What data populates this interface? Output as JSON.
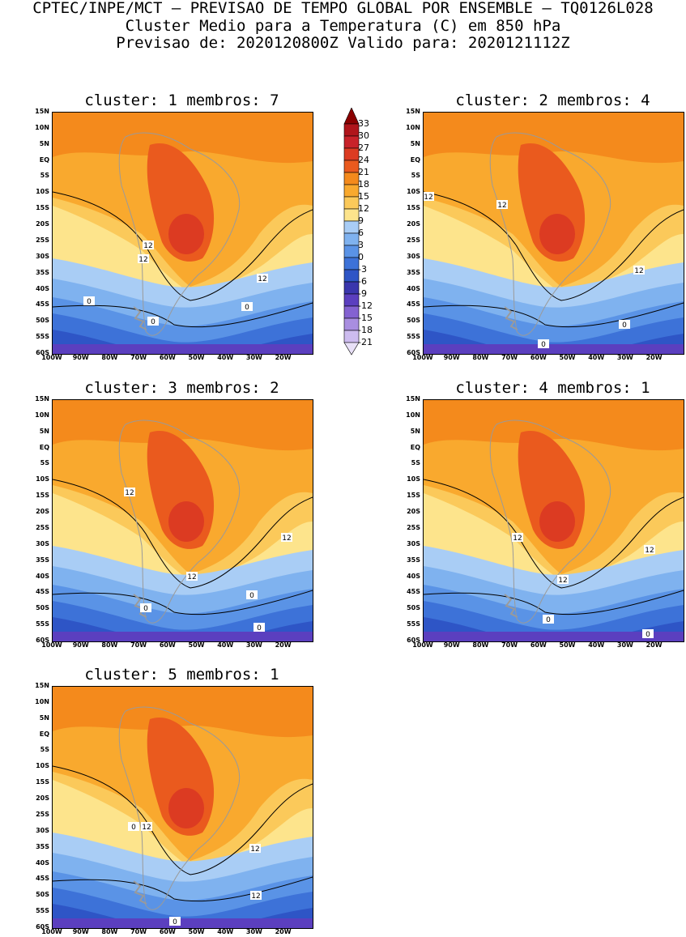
{
  "header": {
    "line1": "CPTEC/INPE/MCT – PREVISAO DE TEMPO GLOBAL POR ENSEMBLE – TQ0126L028",
    "line2": "Cluster Medio para a Temperatura (C) em 850 hPa",
    "line3": "Previsao de: 2020120800Z   Valido para: 2020121112Z"
  },
  "axes": {
    "lat_labels": [
      "15N",
      "10N",
      "5N",
      "EQ",
      "5S",
      "10S",
      "15S",
      "20S",
      "25S",
      "30S",
      "35S",
      "40S",
      "45S",
      "50S",
      "55S",
      "60S"
    ],
    "lon_labels": [
      "100W",
      "90W",
      "80W",
      "70W",
      "60W",
      "50W",
      "40W",
      "30W",
      "20W"
    ]
  },
  "colorbar": {
    "levels": [
      "33",
      "30",
      "27",
      "24",
      "21",
      "18",
      "15",
      "12",
      "9",
      "6",
      "3",
      "0",
      "-3",
      "-6",
      "-9",
      "-12",
      "-15",
      "-18",
      "-21"
    ],
    "colors": [
      "#8b0000",
      "#b0151b",
      "#c8222a",
      "#dc3b22",
      "#ea5a1e",
      "#f48a1c",
      "#f9a92e",
      "#fbc95a",
      "#fde48c",
      "#a9cdf5",
      "#7fb2ef",
      "#5a93e6",
      "#3d72d8",
      "#2e55c6",
      "#3a36ad",
      "#5b3fbf",
      "#8462d1",
      "#a98ee0",
      "#cdbcef",
      "#e8e0f7"
    ]
  },
  "panels": [
    {
      "title": "cluster: 1   membros: 7",
      "contour_labels": [
        "12",
        "12",
        "12",
        "0",
        "0",
        "0"
      ]
    },
    {
      "title": "cluster: 2   membros: 4",
      "contour_labels": [
        "12",
        "12",
        "12",
        "0",
        "0"
      ]
    },
    {
      "title": "cluster: 3   membros: 2",
      "contour_labels": [
        "12",
        "12",
        "12",
        "0",
        "0",
        "0"
      ]
    },
    {
      "title": "cluster: 4   membros: 1",
      "contour_labels": [
        "12",
        "12",
        "12",
        "0",
        "0"
      ]
    },
    {
      "title": "cluster: 5   membros: 1",
      "contour_labels": [
        "12",
        "12",
        "12",
        "0",
        "0"
      ]
    }
  ],
  "palette": {
    "warm_bg": "#f9a92e",
    "warm2": "#f48a1c",
    "hot": "#ea5a1e",
    "hotter": "#dc3b22",
    "yellow": "#fbc95a",
    "paleyellow": "#fde48c",
    "lightblue": "#a9cdf5",
    "blue1": "#7fb2ef",
    "blue2": "#5a93e6",
    "blue3": "#3d72d8",
    "blue4": "#2e55c6",
    "purple": "#5b3fbf",
    "border_gray": "#9a9a9a"
  }
}
